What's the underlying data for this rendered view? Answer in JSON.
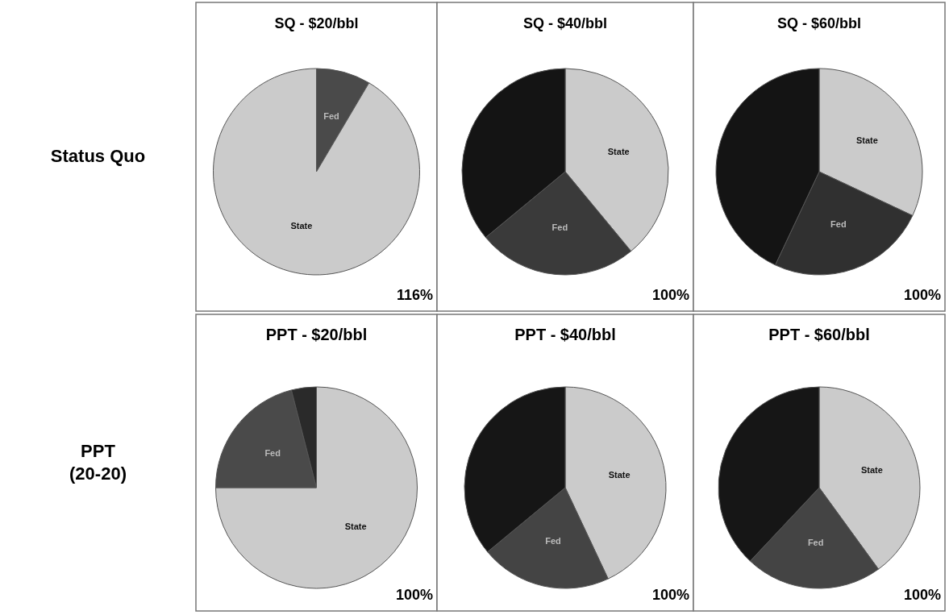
{
  "chart_data": [
    {
      "type": "pie",
      "title": "SQ - $20/bbl",
      "categories": [
        "Fed",
        "State"
      ],
      "values": [
        8.5,
        91.5
      ],
      "colors": [
        "#4a4a4a",
        "#cbcbcb"
      ],
      "annotations": [
        "116%",
        "Status Quo"
      ]
    },
    {
      "type": "pie",
      "title": "SQ - $40/bbl",
      "categories": [
        "State",
        "Fed",
        null
      ],
      "values": [
        39,
        25,
        36
      ],
      "colors": [
        "#cbcbcb",
        "#3a3a3a",
        "#141414"
      ],
      "annotations": [
        "100%"
      ]
    },
    {
      "type": "pie",
      "title": "SQ - $60/bbl",
      "categories": [
        "State",
        "Fed",
        null
      ],
      "values": [
        32,
        25,
        43
      ],
      "colors": [
        "#cbcbcb",
        "#303030",
        "#141414"
      ],
      "annotations": [
        "100%"
      ]
    },
    {
      "type": "pie",
      "title": "PPT - $20/bbl",
      "categories": [
        "State",
        "Fed",
        null
      ],
      "values": [
        75,
        21,
        4
      ],
      "colors": [
        "#cbcbcb",
        "#4a4a4a",
        "#2a2a2a"
      ],
      "annotations": [
        "100%",
        "PPT\n(20-20)"
      ]
    },
    {
      "type": "pie",
      "title": "PPT - $40/bbl",
      "categories": [
        "State",
        "Fed",
        null
      ],
      "values": [
        43,
        21,
        36
      ],
      "colors": [
        "#cbcbcb",
        "#444444",
        "#161616"
      ],
      "annotations": [
        "100%"
      ]
    },
    {
      "type": "pie",
      "title": "PPT - $60/bbl",
      "categories": [
        "State",
        "Fed",
        null
      ],
      "values": [
        40,
        22,
        38
      ],
      "colors": [
        "#cbcbcb",
        "#444444",
        "#161616"
      ],
      "annotations": [
        "100%"
      ]
    }
  ]
}
